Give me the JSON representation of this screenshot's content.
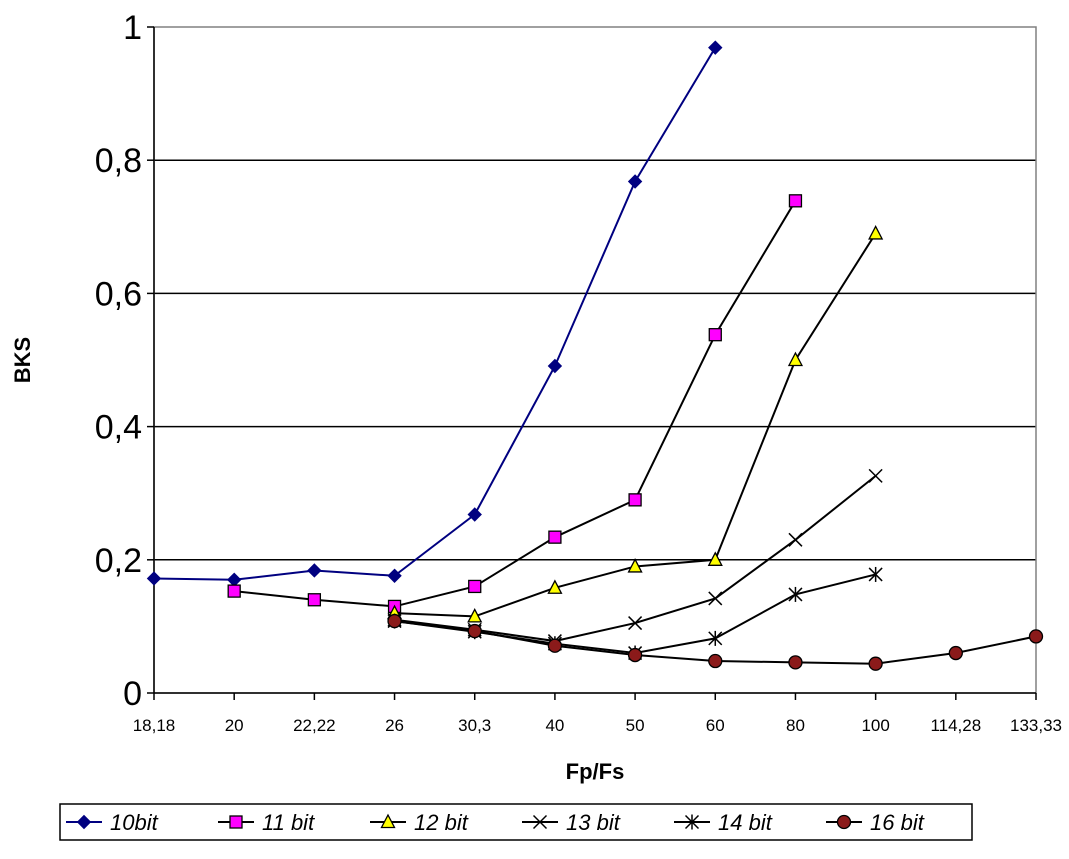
{
  "chart_data": {
    "type": "line",
    "xlabel": "Fp/Fs",
    "ylabel": "BKS",
    "categories": [
      "18,18",
      "20",
      "22,22",
      "26",
      "30,3",
      "40",
      "50",
      "60",
      "80",
      "100",
      "114,28",
      "133,33"
    ],
    "ylim": [
      0,
      1
    ],
    "yticks": [
      "0",
      "0,2",
      "0,4",
      "0,6",
      "0,8",
      "1"
    ],
    "grid": true,
    "legend_position": "bottom",
    "series": [
      {
        "name": "10bit",
        "color": "#000080",
        "marker": "diamond",
        "marker_fill": "#000080",
        "values": [
          0.172,
          0.17,
          0.184,
          0.176,
          0.268,
          0.491,
          0.768,
          0.969,
          null,
          null,
          null,
          null
        ]
      },
      {
        "name": "11 bit",
        "color": "#000000",
        "marker": "square",
        "marker_fill": "#FF00FF",
        "values": [
          null,
          0.153,
          0.14,
          0.13,
          0.16,
          0.234,
          0.29,
          0.538,
          0.739,
          null,
          null,
          null
        ]
      },
      {
        "name": "12 bit",
        "color": "#000000",
        "marker": "triangle",
        "marker_fill": "#FFFF00",
        "values": [
          null,
          null,
          null,
          0.12,
          0.115,
          0.158,
          0.19,
          0.2,
          0.5,
          0.69,
          null,
          null
        ]
      },
      {
        "name": "13 bit",
        "color": "#000000",
        "marker": "x",
        "marker_fill": "none",
        "values": [
          null,
          null,
          null,
          0.11,
          0.095,
          0.078,
          0.105,
          0.142,
          0.23,
          0.326,
          null,
          null
        ]
      },
      {
        "name": "14 bit",
        "color": "#000000",
        "marker": "asterisk",
        "marker_fill": "none",
        "values": [
          null,
          null,
          null,
          0.108,
          0.092,
          0.074,
          0.06,
          0.082,
          0.148,
          0.178,
          null,
          null
        ]
      },
      {
        "name": "16 bit",
        "color": "#000000",
        "marker": "circle",
        "marker_fill": "#8B1A1A",
        "values": [
          null,
          null,
          null,
          0.108,
          0.093,
          0.071,
          0.057,
          0.048,
          0.046,
          0.044,
          0.06,
          0.085
        ]
      }
    ]
  }
}
